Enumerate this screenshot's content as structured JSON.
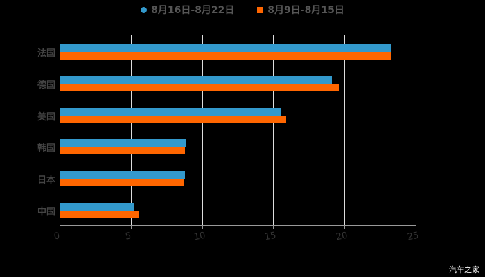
{
  "chart_data": {
    "type": "bar",
    "orientation": "horizontal",
    "title": "",
    "xlabel": "",
    "ylabel": "",
    "xlim": [
      0,
      25
    ],
    "xticks": [
      0,
      5,
      10,
      15,
      20,
      25
    ],
    "grid": true,
    "legend_position": "top",
    "categories": [
      "法国",
      "德国",
      "美国",
      "韩国",
      "日本",
      "中国"
    ],
    "series": [
      {
        "name": "8月16日-8月22日",
        "color": "#3399cc",
        "values": [
          23.3,
          19.1,
          15.5,
          8.9,
          8.8,
          5.25
        ]
      },
      {
        "name": "8月9日-8月15日",
        "color": "#ff6600",
        "values": [
          23.3,
          19.6,
          15.9,
          8.8,
          8.75,
          5.6
        ]
      }
    ]
  },
  "legend": {
    "items": [
      {
        "label": "8月16日-8月22日",
        "color": "#3399cc"
      },
      {
        "label": "8月9日-8月15日",
        "color": "#ff6600"
      }
    ]
  },
  "watermark": "汽车之家"
}
